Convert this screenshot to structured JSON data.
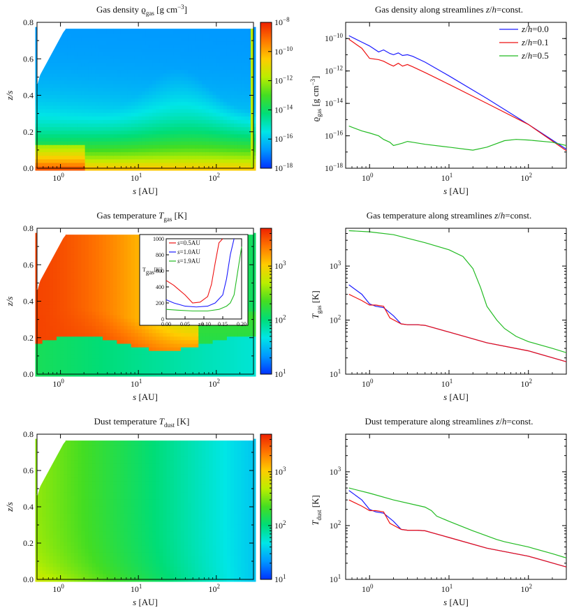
{
  "colormap": [
    "#0033ff",
    "#0099ff",
    "#00e6e6",
    "#00dd77",
    "#44dd22",
    "#bbee00",
    "#ffcc00",
    "#ff7700",
    "#ee2200"
  ],
  "series_colors": {
    "z/h=0.0": "#1a1aff",
    "z/h=0.1": "#ee1111",
    "z/h=0.5": "#22bb22"
  },
  "chart_data": [
    {
      "type": "heatmap",
      "title": "Gas density ϱ_gas [g cm^-3]",
      "title_main": "Gas density ϱ",
      "title_sub": "gas",
      "title_unit": " [g cm",
      "title_sup": "−3",
      "title_end": "]",
      "xlabel": "s [AU]",
      "ylabel": "z/s",
      "xscale": "log",
      "xlim": [
        0.5,
        300
      ],
      "ylim": [
        0,
        0.8
      ],
      "xticks": [
        "10^0",
        "10^1",
        "10^2"
      ],
      "yticks": [
        "0.0",
        "0.2",
        "0.4",
        "0.6",
        "0.8"
      ],
      "colorbar": {
        "scale": "log",
        "range": [
          1e-18,
          1e-08
        ],
        "ticks": [
          "10^-8",
          "10^-10",
          "10^-12",
          "10^-14",
          "10^-16",
          "10^-18"
        ]
      }
    },
    {
      "type": "line",
      "title": "Gas density along streamlines z/h=const.",
      "xlabel": "s [AU]",
      "ylabel": "ϱ_gas [g cm^-3]",
      "xscale": "log",
      "yscale": "log",
      "xlim": [
        0.5,
        300
      ],
      "ylim": [
        1e-18,
        1e-09
      ],
      "xticks": [
        "10^0",
        "10^1",
        "10^2"
      ],
      "yticks": [
        "10^-10",
        "10^-12",
        "10^-14",
        "10^-16",
        "10^-18"
      ],
      "legend": "top-right",
      "series": [
        {
          "name": "z/h=0.0",
          "x": [
            0.55,
            0.8,
            1.0,
            1.3,
            1.5,
            1.8,
            2.0,
            2.3,
            2.6,
            3.0,
            3.5,
            5,
            10,
            30,
            100,
            300
          ],
          "values": [
            1.5e-10,
            6e-11,
            3.5e-11,
            1.5e-11,
            2e-11,
            1.2e-11,
            1e-11,
            1.3e-11,
            9e-12,
            1e-11,
            8e-12,
            3.5e-12,
            5e-13,
            2e-14,
            5e-16,
            1.5e-17
          ]
        },
        {
          "name": "z/h=0.1",
          "x": [
            0.55,
            0.8,
            1.0,
            1.3,
            1.5,
            1.8,
            2.0,
            2.3,
            2.6,
            3.0,
            3.5,
            5,
            10,
            30,
            100,
            300
          ],
          "values": [
            9e-11,
            2.5e-11,
            6e-12,
            5e-12,
            4e-12,
            2.5e-12,
            2e-12,
            3e-12,
            2e-12,
            2.5e-12,
            1.8e-12,
            8e-13,
            1.5e-13,
            1e-14,
            5e-16,
            1.2e-17
          ]
        },
        {
          "name": "z/h=0.5",
          "x": [
            0.55,
            0.8,
            1.0,
            1.3,
            1.5,
            1.8,
            2.0,
            2.3,
            2.6,
            3.0,
            3.5,
            5,
            10,
            20,
            30,
            50,
            70,
            100,
            200,
            300
          ],
          "values": [
            4e-16,
            2e-16,
            1.5e-16,
            1e-16,
            6e-17,
            4e-17,
            2.5e-17,
            3e-17,
            3.5e-17,
            4.5e-17,
            4e-17,
            3e-17,
            2e-17,
            1.3e-17,
            2e-17,
            5e-17,
            6e-17,
            5.5e-17,
            4e-17,
            2.5e-17
          ]
        }
      ]
    },
    {
      "type": "heatmap",
      "title": "Gas temperature T_gas [K]",
      "title_main": "Gas temperature ",
      "title_var": "T",
      "title_sub": "gas",
      "title_end": " [K]",
      "xlabel": "s [AU]",
      "ylabel": "z/s",
      "xscale": "log",
      "xlim": [
        0.5,
        300
      ],
      "ylim": [
        0,
        0.8
      ],
      "xticks": [
        "10^0",
        "10^1",
        "10^2"
      ],
      "yticks": [
        "0.0",
        "0.2",
        "0.4",
        "0.6",
        "0.8"
      ],
      "colorbar": {
        "scale": "log",
        "range": [
          10,
          5000
        ],
        "ticks": [
          "10^3",
          "10^2",
          "10^1"
        ]
      },
      "inset": {
        "ylabel": "T_gas[K]",
        "xlabel": "z/s",
        "xlim": [
          0,
          0.2
        ],
        "ylim": [
          0,
          1000
        ],
        "xticks": [
          "0.00",
          "0.05",
          "0.10",
          "0.15",
          "0.20"
        ],
        "yticks": [
          "1000",
          "800",
          "600",
          "400",
          "200",
          "0"
        ],
        "series": [
          {
            "name": "s=0.5AU",
            "x": [
              0,
              0.02,
              0.05,
              0.07,
              0.09,
              0.11,
              0.12,
              0.13,
              0.14,
              0.15
            ],
            "values": [
              480,
              420,
              300,
              200,
              210,
              280,
              430,
              700,
              950,
              1000
            ]
          },
          {
            "name": "s=1.0AU",
            "x": [
              0,
              0.02,
              0.05,
              0.08,
              0.11,
              0.13,
              0.15,
              0.16,
              0.17,
              0.18
            ],
            "values": [
              240,
              200,
              160,
              150,
              160,
              200,
              300,
              500,
              800,
              1000
            ]
          },
          {
            "name": "s=1.9AU",
            "x": [
              0,
              0.03,
              0.07,
              0.11,
              0.14,
              0.16,
              0.17,
              0.18,
              0.19,
              0.2
            ],
            "values": [
              120,
              110,
              100,
              100,
              120,
              160,
              200,
              300,
              600,
              900
            ]
          }
        ]
      }
    },
    {
      "type": "line",
      "title": "Gas temperature along streamlines z/h=const.",
      "xlabel": "s [AU]",
      "ylabel": "T_gas [K]",
      "xscale": "log",
      "yscale": "log",
      "xlim": [
        0.5,
        300
      ],
      "ylim": [
        10,
        5000
      ],
      "xticks": [
        "10^0",
        "10^1",
        "10^2"
      ],
      "yticks": [
        "10^3",
        "10^2",
        "10^1"
      ],
      "series": [
        {
          "name": "z/h=0.0",
          "x": [
            0.55,
            0.8,
            1.0,
            1.2,
            1.5,
            2.0,
            2.5,
            3,
            4,
            5,
            10,
            30,
            100,
            300
          ],
          "values": [
            450,
            300,
            200,
            180,
            170,
            120,
            85,
            82,
            82,
            80,
            60,
            38,
            27,
            17
          ]
        },
        {
          "name": "z/h=0.1",
          "x": [
            0.55,
            0.8,
            1.0,
            1.2,
            1.5,
            1.8,
            2.5,
            3,
            4,
            5,
            10,
            30,
            100,
            300
          ],
          "values": [
            300,
            230,
            190,
            190,
            180,
            110,
            85,
            82,
            82,
            80,
            60,
            38,
            27,
            17
          ]
        },
        {
          "name": "z/h=0.5",
          "x": [
            0.55,
            1,
            2,
            5,
            10,
            15,
            20,
            25,
            30,
            40,
            50,
            70,
            100,
            200,
            300
          ],
          "values": [
            4500,
            4300,
            3800,
            2700,
            2000,
            1500,
            900,
            400,
            180,
            100,
            70,
            50,
            40,
            30,
            25
          ]
        }
      ]
    },
    {
      "type": "heatmap",
      "title": "Dust temperature T_dust [K]",
      "title_main": "Dust temperature ",
      "title_var": "T",
      "title_sub": "dust",
      "title_end": " [K]",
      "xlabel": "s [AU]",
      "ylabel": "z/s",
      "xscale": "log",
      "xlim": [
        0.5,
        300
      ],
      "ylim": [
        0,
        0.8
      ],
      "xticks": [
        "10^0",
        "10^1",
        "10^2"
      ],
      "yticks": [
        "0.0",
        "0.2",
        "0.4",
        "0.6",
        "0.8"
      ],
      "colorbar": {
        "scale": "log",
        "range": [
          10,
          5000
        ],
        "ticks": [
          "10^3",
          "10^2",
          "10^1"
        ]
      }
    },
    {
      "type": "line",
      "title": "Dust temperature along streamlines z/h=const.",
      "xlabel": "s [AU]",
      "ylabel": "T_dust [K]",
      "xscale": "log",
      "yscale": "log",
      "xlim": [
        0.5,
        300
      ],
      "ylim": [
        10,
        5000
      ],
      "xticks": [
        "10^0",
        "10^1",
        "10^2"
      ],
      "yticks": [
        "10^3",
        "10^2",
        "10^1"
      ],
      "series": [
        {
          "name": "z/h=0.0",
          "x": [
            0.55,
            0.8,
            1.0,
            1.2,
            1.5,
            2.0,
            2.5,
            3,
            4,
            5,
            10,
            30,
            100,
            300
          ],
          "values": [
            450,
            300,
            200,
            180,
            170,
            120,
            85,
            82,
            82,
            80,
            60,
            38,
            27,
            17
          ]
        },
        {
          "name": "z/h=0.1",
          "x": [
            0.55,
            0.8,
            1.0,
            1.2,
            1.5,
            1.8,
            2.5,
            3,
            4,
            5,
            10,
            30,
            100,
            300
          ],
          "values": [
            300,
            230,
            190,
            190,
            180,
            110,
            85,
            82,
            82,
            80,
            60,
            38,
            27,
            17
          ]
        },
        {
          "name": "z/h=0.5",
          "x": [
            0.55,
            1,
            2,
            5,
            6,
            7,
            10,
            20,
            40,
            50,
            100,
            200,
            300
          ],
          "values": [
            500,
            400,
            300,
            220,
            190,
            150,
            120,
            80,
            55,
            50,
            40,
            30,
            25
          ]
        }
      ]
    }
  ]
}
